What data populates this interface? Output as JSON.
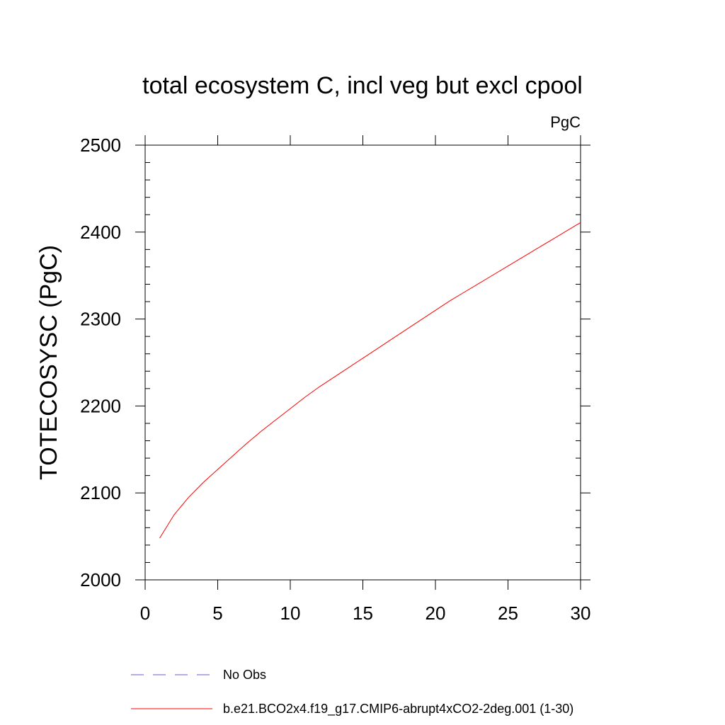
{
  "chart_data": {
    "type": "line",
    "title": "total ecosystem C, incl veg but excl cpool",
    "units_label": "PgC",
    "xlabel": "",
    "ylabel": "TOTECOSYSC  (PgC)",
    "xlim": [
      0,
      30
    ],
    "ylim": [
      2000,
      2500
    ],
    "x_major_ticks": [
      0,
      5,
      10,
      15,
      20,
      25,
      30
    ],
    "x_tick_labels": [
      "0",
      "5",
      "10",
      "15",
      "20",
      "25",
      "30"
    ],
    "y_major_ticks": [
      2000,
      2100,
      2200,
      2300,
      2400,
      2500
    ],
    "y_tick_labels": [
      "2000",
      "2100",
      "2200",
      "2300",
      "2400",
      "2500"
    ],
    "y_minor_step": 20,
    "x_minor_step": 1,
    "series": [
      {
        "name": "b.e21.BCO2x4.f19_g17.CMIP6-abrupt4xCO2-2deg.001 (1-30)",
        "color": "#ff0000",
        "dash": "solid",
        "x": [
          1,
          2,
          3,
          4,
          5,
          6,
          7,
          8,
          9,
          10,
          11,
          12,
          13,
          14,
          15,
          16,
          17,
          18,
          19,
          20,
          21,
          22,
          23,
          24,
          25,
          26,
          27,
          28,
          29,
          30
        ],
        "values": [
          2048,
          2075,
          2095,
          2112,
          2127,
          2142,
          2157,
          2171,
          2184,
          2197,
          2210,
          2222,
          2233,
          2244,
          2255,
          2266,
          2277,
          2288,
          2299,
          2310,
          2321,
          2331,
          2341,
          2351,
          2361,
          2371,
          2381,
          2391,
          2401,
          2411
        ]
      }
    ],
    "legend": [
      {
        "label": "No Obs",
        "color": "#6a5acd",
        "dash": "dashed"
      },
      {
        "label": "b.e21.BCO2x4.f19_g17.CMIP6-abrupt4xCO2-2deg.001 (1-30)",
        "color": "#ff0000",
        "dash": "solid"
      }
    ]
  }
}
